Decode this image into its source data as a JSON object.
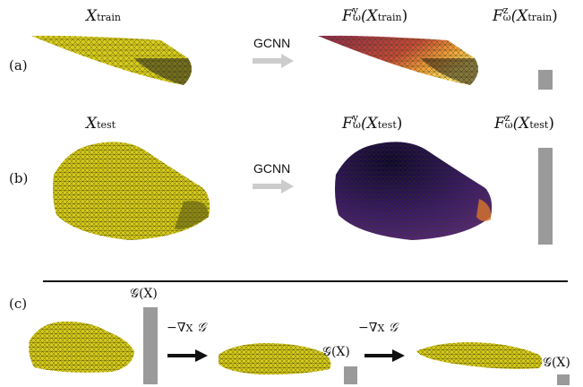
{
  "rows": {
    "a": {
      "label": "(a)",
      "input": {
        "sym": "X",
        "sub": "train"
      },
      "arrow": "GCNN",
      "out_y": {
        "pre": "F",
        "sup": "y",
        "sub": "ω",
        "arg": "(X",
        "argsub": "train",
        "close": ")"
      },
      "out_z": {
        "pre": "F",
        "sup": "z",
        "sub": "ω",
        "arg": "(X",
        "argsub": "train",
        "close": ")"
      }
    },
    "b": {
      "label": "(b)",
      "input": {
        "sym": "X",
        "sub": "test"
      },
      "arrow": "GCNN",
      "out_y": {
        "pre": "F",
        "sup": "y",
        "sub": "ω",
        "arg": "(X",
        "argsub": "test",
        "close": ")"
      },
      "out_z": {
        "pre": "F",
        "sup": "z",
        "sub": "ω",
        "arg": "(X",
        "argsub": "test",
        "close": ")"
      }
    },
    "c": {
      "label": "(c)",
      "g1": "𝒢(X)",
      "g2": "𝒢(X)",
      "g3": "𝒢(X)",
      "step1": "−∇",
      "step1_sub": "X",
      "step1_post": "𝒢",
      "step2": "−∇",
      "step2_sub": "X",
      "step2_post": "𝒢"
    }
  },
  "colors": {
    "mesh_yellow": "#d8cc1c",
    "mesh_dark": "#3a2a6a",
    "bar_gray": "#9a9a9a",
    "arrow_gray": "#cccccc"
  }
}
